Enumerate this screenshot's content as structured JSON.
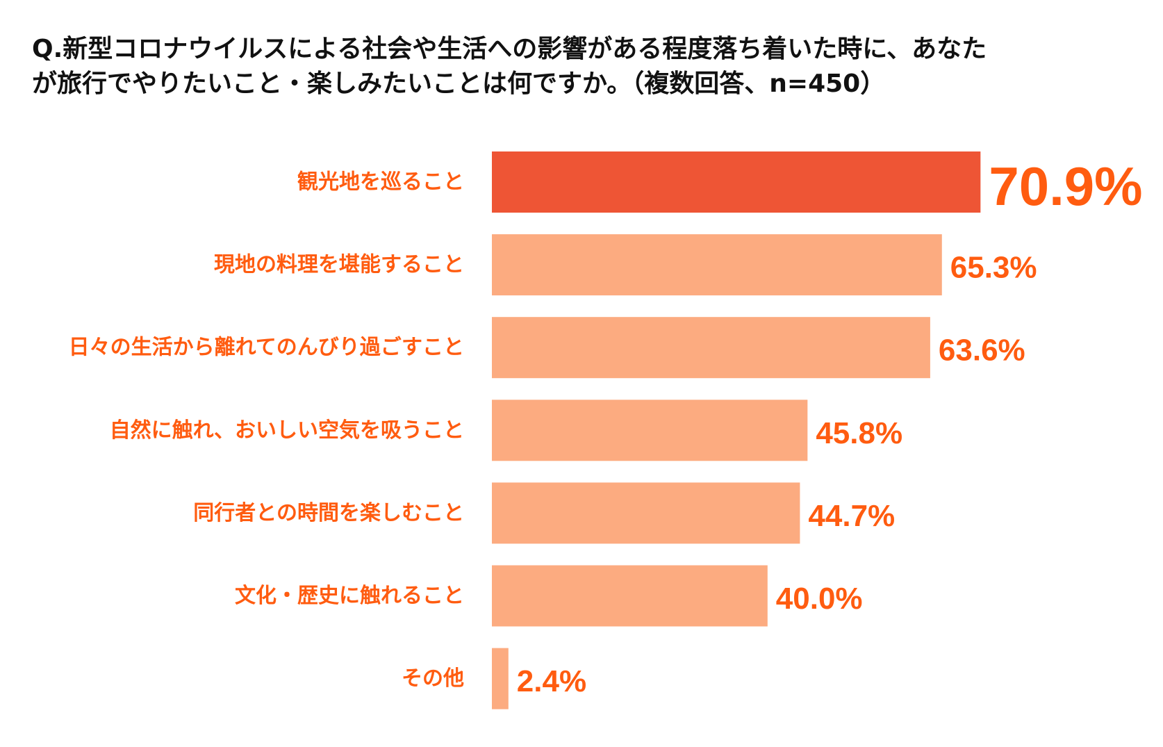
{
  "title": "Q.新型コロナウイルスによる社会や生活への影響がある程度落ち着いた時に、あなた\nが旅行でやりたいこと・楽しみたいことは何ですか。（複数回答、n=450）",
  "colors": {
    "highlight_bar": "#EE5535",
    "bar": "#FCAB80",
    "label_text": "#FF5C10",
    "title_text": "#111111"
  },
  "chart_data": {
    "type": "bar",
    "orientation": "horizontal",
    "categories": [
      "観光地を巡ること",
      "現地の料理を堪能すること",
      "日々の生活から離れてのんびり過ごすこと",
      "自然に触れ、おいしい空気を吸うこと",
      "同行者との時間を楽しむこと",
      "文化・歴史に触れること",
      "その他"
    ],
    "values": [
      70.9,
      65.3,
      63.6,
      45.8,
      44.7,
      40.0,
      2.4
    ],
    "value_labels": [
      "70.9%",
      "65.3%",
      "63.6%",
      "45.8%",
      "44.7%",
      "40.0%",
      "2.4%"
    ],
    "highlight_index": 0,
    "unit": "%",
    "xlim": [
      0,
      100
    ],
    "grid": false,
    "legend": "none"
  }
}
